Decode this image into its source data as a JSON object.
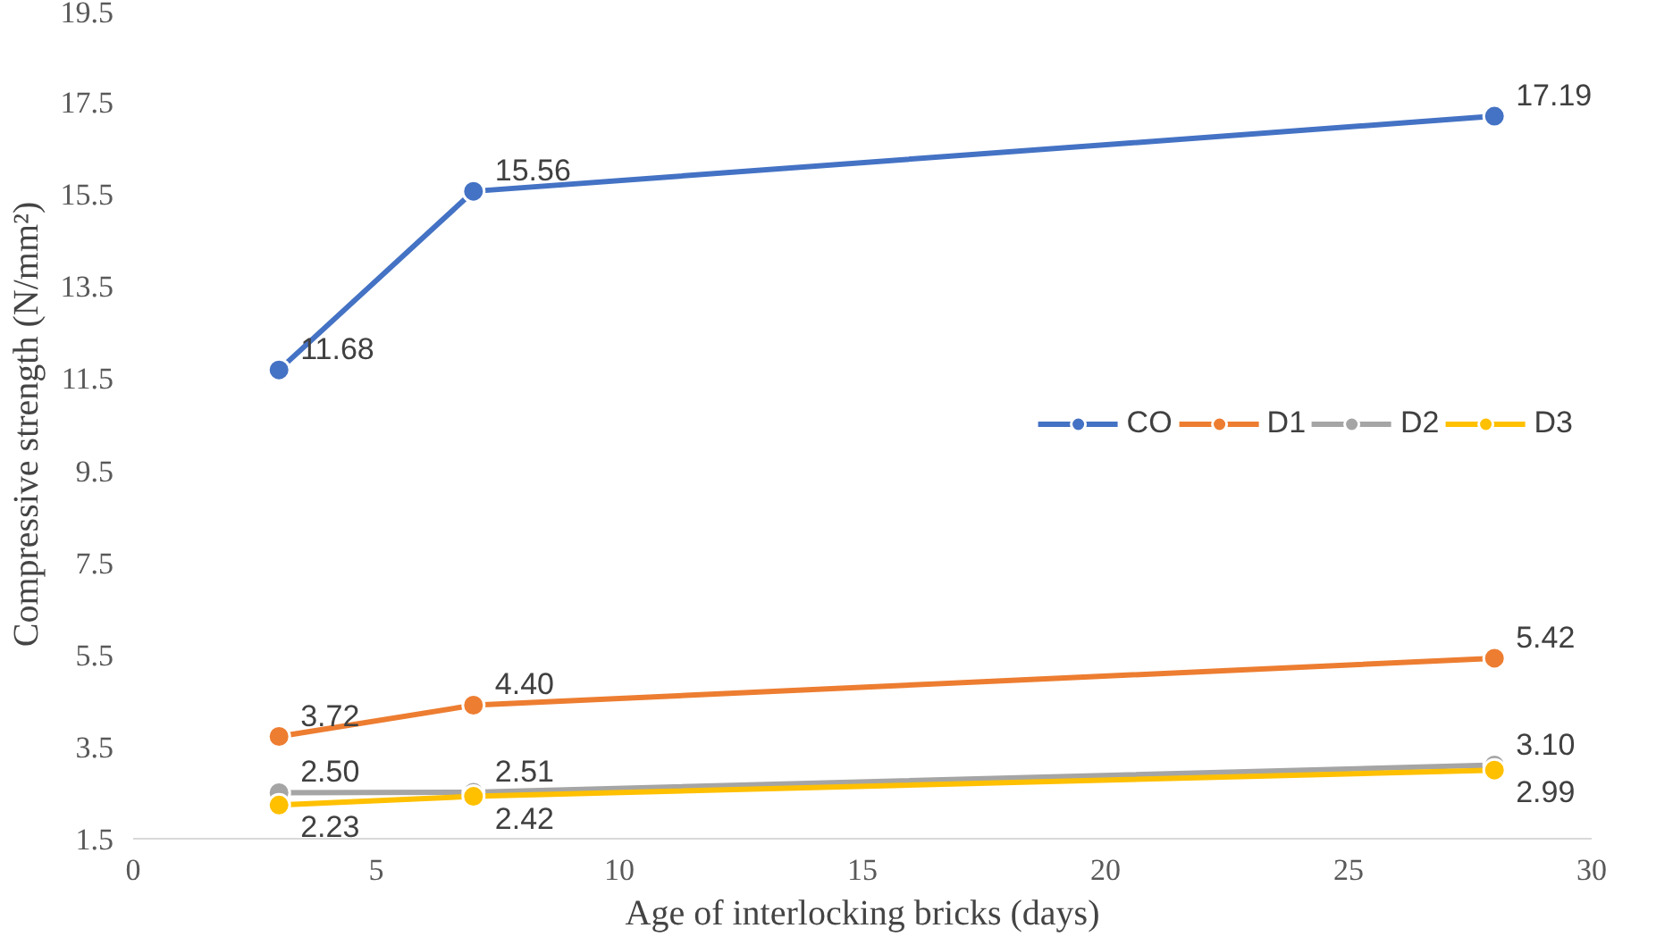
{
  "chart_data": {
    "type": "line",
    "xlabel": "Age of interlocking bricks (days)",
    "ylabel": "Compressive strength (N/mm²)",
    "x": [
      3,
      7,
      28
    ],
    "series": [
      {
        "name": "CO",
        "color": "#4472c4",
        "values": [
          11.68,
          15.56,
          17.19
        ],
        "value_labels": [
          "11.68",
          "15.56",
          "17.19"
        ]
      },
      {
        "name": "D1",
        "color": "#ed7d31",
        "values": [
          3.72,
          4.4,
          5.42
        ],
        "value_labels": [
          "3.72",
          "4.40",
          "5.42"
        ]
      },
      {
        "name": "D2",
        "color": "#a5a5a5",
        "values": [
          2.5,
          2.51,
          3.1
        ],
        "value_labels": [
          "2.50",
          "2.51",
          "3.10"
        ]
      },
      {
        "name": "D3",
        "color": "#ffc000",
        "values": [
          2.23,
          2.42,
          2.99
        ],
        "value_labels": [
          "2.23",
          "2.42",
          "2.99"
        ]
      }
    ],
    "xlim": [
      0,
      30
    ],
    "xticks": [
      0,
      5,
      10,
      15,
      20,
      25,
      30
    ],
    "ylim": [
      1.5,
      19.5
    ],
    "yticks": [
      1.5,
      3.5,
      5.5,
      7.5,
      9.5,
      11.5,
      13.5,
      15.5,
      17.5,
      19.5
    ],
    "grid": false,
    "legend": "right",
    "marker": "circle",
    "line_style": "solid"
  }
}
